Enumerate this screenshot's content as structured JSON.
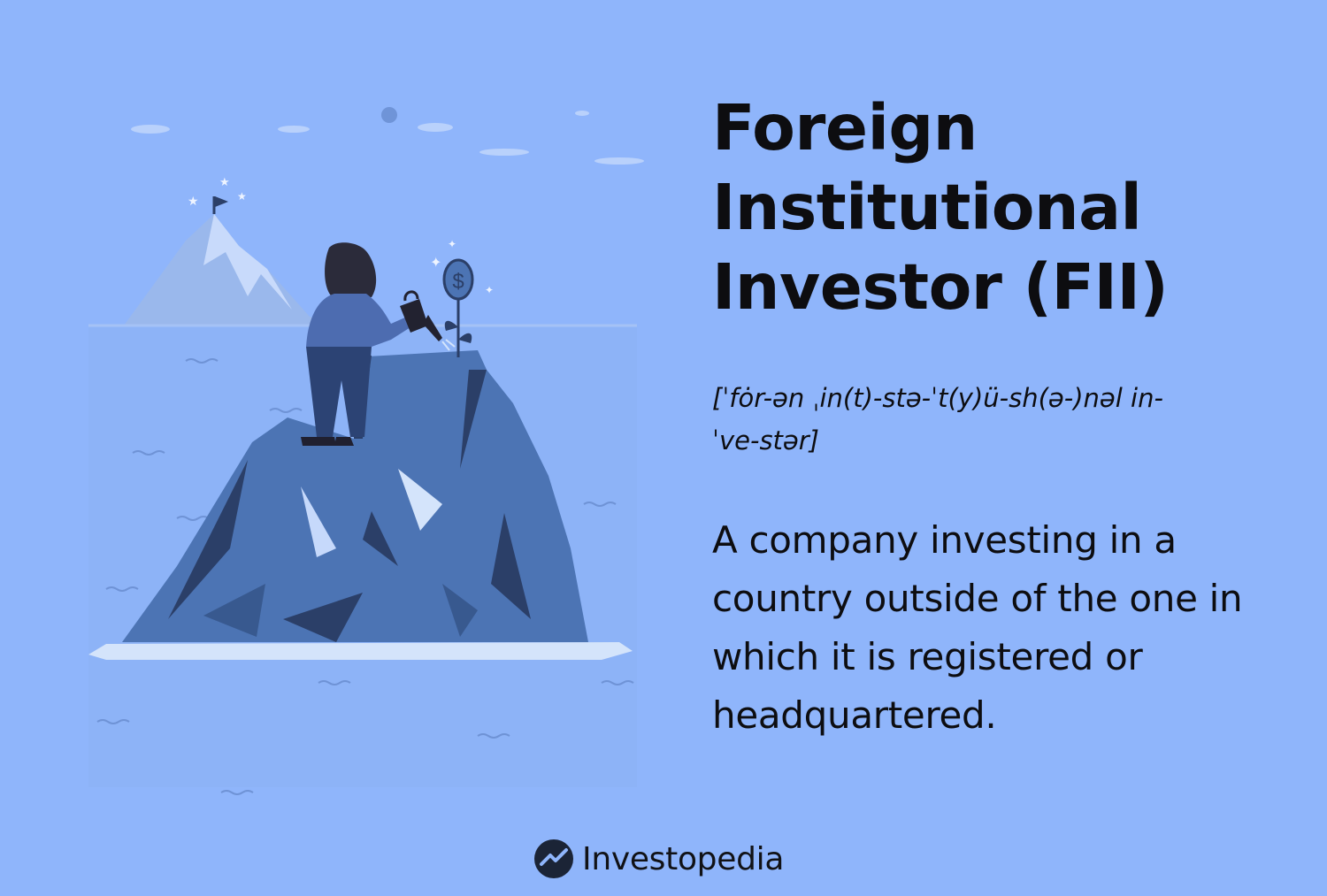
{
  "term": {
    "title": "Foreign Institutional Investor (FII)",
    "pronunciation": "[ˈfȯr-ən ˌin(t)-stə-ˈt(y)ü-sh(ə-)nəl in-ˈve-stər]",
    "definition": "A company investing in a country outside of the one in which it is registered or headquartered."
  },
  "brand": {
    "name": "Investopedia",
    "icon": "investopedia-logo-icon"
  },
  "illustration": {
    "icons": [
      "mountain-flag-icon",
      "person-icon",
      "watering-can-icon",
      "dollar-plant-icon",
      "rock-island-icon"
    ]
  },
  "colors": {
    "background": "#8fb5fb",
    "text": "#0d0d10",
    "rock": "#4c74b4",
    "rock_dark": "#2b3f68",
    "highlight": "#d4e4fb"
  }
}
